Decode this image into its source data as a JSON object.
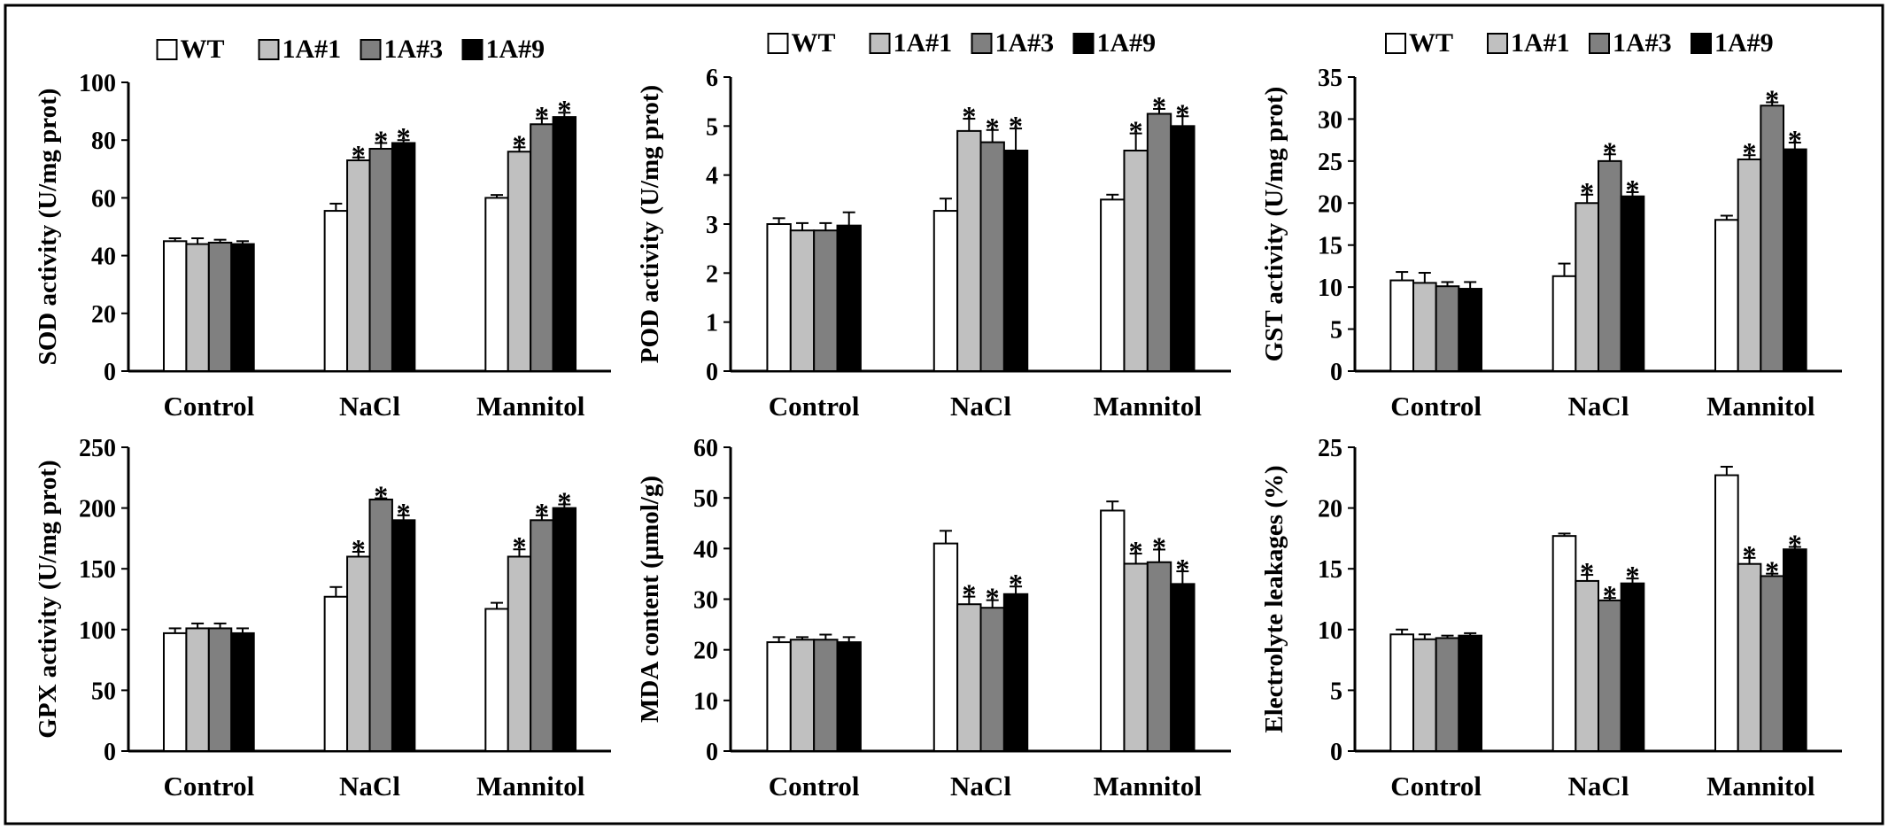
{
  "figure": {
    "series_names": [
      "WT",
      "1A#1",
      "1A#3",
      "1A#9"
    ],
    "series_colors": [
      "#ffffff",
      "#c0c0c0",
      "#808080",
      "#000000"
    ],
    "categories": [
      "Control",
      "NaCl",
      "Mannitol"
    ],
    "significance_marker": "*"
  },
  "chart_data": [
    {
      "type": "bar",
      "title": "",
      "ylabel": "SOD activity (U/mg prot)",
      "xlabel": "",
      "categories": [
        "Control",
        "NaCl",
        "Mannitol"
      ],
      "ylim": [
        0,
        100
      ],
      "yticks": [
        0,
        20,
        40,
        60,
        80,
        100
      ],
      "yticklabels": [
        "0",
        "20",
        "40",
        "60",
        "80",
        "100"
      ],
      "legend": "top",
      "series": [
        {
          "name": "WT",
          "values": [
            45,
            55.5,
            60
          ],
          "errors": [
            1,
            2.5,
            1
          ],
          "significant": [
            false,
            false,
            false
          ]
        },
        {
          "name": "1A#1",
          "values": [
            44,
            73,
            76
          ],
          "errors": [
            2,
            1,
            1.5
          ],
          "significant": [
            false,
            true,
            true
          ]
        },
        {
          "name": "1A#3",
          "values": [
            44.5,
            77,
            85.5
          ],
          "errors": [
            1,
            2,
            2
          ],
          "significant": [
            false,
            true,
            true
          ]
        },
        {
          "name": "1A#9",
          "values": [
            44,
            79,
            88
          ],
          "errors": [
            1,
            1,
            1.5
          ],
          "significant": [
            false,
            true,
            true
          ]
        }
      ]
    },
    {
      "type": "bar",
      "title": "",
      "ylabel": "POD activity (U/mg prot)",
      "xlabel": "",
      "categories": [
        "Control",
        "NaCl",
        "Mannitol"
      ],
      "ylim": [
        0,
        6
      ],
      "yticks": [
        0,
        1,
        2,
        3,
        4,
        5,
        6
      ],
      "yticklabels": [
        "0",
        "1",
        "2",
        "3",
        "4",
        "5",
        "6"
      ],
      "legend": "top",
      "series": [
        {
          "name": "WT",
          "values": [
            3.0,
            3.27,
            3.5
          ],
          "errors": [
            0.12,
            0.25,
            0.1
          ],
          "significant": [
            false,
            false,
            false
          ]
        },
        {
          "name": "1A#1",
          "values": [
            2.87,
            4.9,
            4.5
          ],
          "errors": [
            0.15,
            0.25,
            0.35
          ],
          "significant": [
            false,
            true,
            true
          ]
        },
        {
          "name": "1A#3",
          "values": [
            2.87,
            4.67,
            5.25
          ],
          "errors": [
            0.15,
            0.25,
            0.1
          ],
          "significant": [
            false,
            true,
            true
          ]
        },
        {
          "name": "1A#9",
          "values": [
            2.97,
            4.5,
            5.0
          ],
          "errors": [
            0.27,
            0.45,
            0.2
          ],
          "significant": [
            false,
            true,
            true
          ]
        }
      ]
    },
    {
      "type": "bar",
      "title": "",
      "ylabel": "GST activity (U/mg prot)",
      "xlabel": "",
      "categories": [
        "Control",
        "NaCl",
        "Mannitol"
      ],
      "ylim": [
        0,
        35
      ],
      "yticks": [
        0,
        5,
        10,
        15,
        20,
        25,
        30,
        35
      ],
      "yticklabels": [
        "0",
        "5",
        "10",
        "15",
        "20",
        "25",
        "30",
        "35"
      ],
      "legend": "top",
      "series": [
        {
          "name": "WT",
          "values": [
            10.8,
            11.3,
            18
          ],
          "errors": [
            1,
            1.5,
            0.5
          ],
          "significant": [
            false,
            false,
            false
          ]
        },
        {
          "name": "1A#1",
          "values": [
            10.5,
            20,
            25.2
          ],
          "errors": [
            1.2,
            1,
            0.5
          ],
          "significant": [
            false,
            true,
            true
          ]
        },
        {
          "name": "1A#3",
          "values": [
            10.1,
            25,
            31.6
          ],
          "errors": [
            0.5,
            0.8,
            0.4
          ],
          "significant": [
            false,
            true,
            true
          ]
        },
        {
          "name": "1A#9",
          "values": [
            9.8,
            20.8,
            26.4
          ],
          "errors": [
            0.8,
            0.5,
            0.8
          ],
          "significant": [
            false,
            true,
            true
          ]
        }
      ]
    },
    {
      "type": "bar",
      "title": "",
      "ylabel": "GPX activity (U/mg prot)",
      "xlabel": "",
      "categories": [
        "Control",
        "NaCl",
        "Mannitol"
      ],
      "ylim": [
        0,
        250
      ],
      "yticks": [
        0,
        50,
        100,
        150,
        200,
        250
      ],
      "yticklabels": [
        "0",
        "50",
        "100",
        "150",
        "200",
        "250"
      ],
      "legend": "none",
      "series": [
        {
          "name": "WT",
          "values": [
            97,
            127,
            117
          ],
          "errors": [
            4,
            8,
            5
          ],
          "significant": [
            false,
            false,
            false
          ]
        },
        {
          "name": "1A#1",
          "values": [
            101,
            160,
            160
          ],
          "errors": [
            4,
            4,
            6
          ],
          "significant": [
            false,
            true,
            true
          ]
        },
        {
          "name": "1A#3",
          "values": [
            101,
            207,
            190
          ],
          "errors": [
            4,
            1,
            4
          ],
          "significant": [
            false,
            true,
            true
          ]
        },
        {
          "name": "1A#9",
          "values": [
            97,
            190,
            200
          ],
          "errors": [
            4,
            4,
            3
          ],
          "significant": [
            false,
            true,
            true
          ]
        }
      ]
    },
    {
      "type": "bar",
      "title": "",
      "ylabel": "MDA content (μmol/g)",
      "xlabel": "",
      "categories": [
        "Control",
        "NaCl",
        "Mannitol"
      ],
      "ylim": [
        0,
        60
      ],
      "yticks": [
        0,
        10,
        20,
        30,
        40,
        50,
        60
      ],
      "yticklabels": [
        "0",
        "10",
        "20",
        "30",
        "40",
        "50",
        "60"
      ],
      "legend": "none",
      "series": [
        {
          "name": "WT",
          "values": [
            21.5,
            41,
            47.5
          ],
          "errors": [
            1,
            2.5,
            1.8
          ],
          "significant": [
            false,
            false,
            false
          ]
        },
        {
          "name": "1A#1",
          "values": [
            22,
            29,
            37
          ],
          "errors": [
            0.5,
            1.5,
            2
          ],
          "significant": [
            false,
            true,
            true
          ]
        },
        {
          "name": "1A#3",
          "values": [
            22,
            28.3,
            37.3
          ],
          "errors": [
            1,
            1.5,
            2.5
          ],
          "significant": [
            false,
            true,
            true
          ]
        },
        {
          "name": "1A#9",
          "values": [
            21.5,
            31,
            33
          ],
          "errors": [
            1,
            1.5,
            2.5
          ],
          "significant": [
            false,
            true,
            true
          ]
        }
      ]
    },
    {
      "type": "bar",
      "title": "",
      "ylabel": "Electrolyte leakages (%)",
      "xlabel": "",
      "categories": [
        "Control",
        "NaCl",
        "Mannitol"
      ],
      "ylim": [
        0,
        25
      ],
      "yticks": [
        0,
        5,
        10,
        15,
        20,
        25
      ],
      "yticklabels": [
        "0",
        "5",
        "10",
        "15",
        "20",
        "25"
      ],
      "legend": "none",
      "series": [
        {
          "name": "WT",
          "values": [
            9.6,
            17.7,
            22.7
          ],
          "errors": [
            0.4,
            0.2,
            0.7
          ],
          "significant": [
            false,
            false,
            false
          ]
        },
        {
          "name": "1A#1",
          "values": [
            9.2,
            14,
            15.4
          ],
          "errors": [
            0.4,
            0.5,
            0.5
          ],
          "significant": [
            false,
            true,
            true
          ]
        },
        {
          "name": "1A#3",
          "values": [
            9.3,
            12.4,
            14.4
          ],
          "errors": [
            0.2,
            0.2,
            0.2
          ],
          "significant": [
            false,
            true,
            true
          ]
        },
        {
          "name": "1A#9",
          "values": [
            9.5,
            13.8,
            16.6
          ],
          "errors": [
            0.2,
            0.4,
            0.2
          ],
          "significant": [
            false,
            true,
            true
          ]
        }
      ]
    }
  ]
}
